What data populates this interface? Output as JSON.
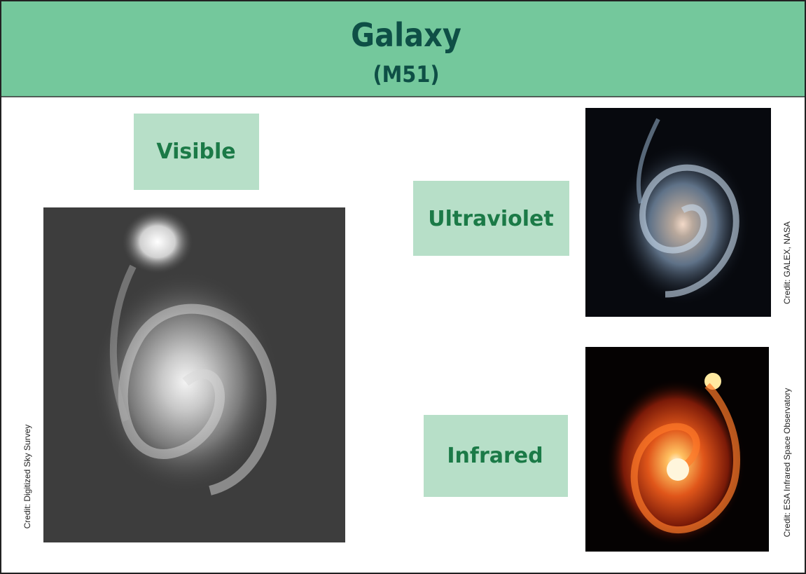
{
  "header": {
    "title": "Galaxy",
    "subtitle": "(M51)"
  },
  "panels": [
    {
      "label": "Visible",
      "credit": "Credit: Digitized Sky Survey"
    },
    {
      "label": "Ultraviolet",
      "credit": "Credit: GALEX, NASA"
    },
    {
      "label": "Infrared",
      "credit": "Credit: ESA Infrared Space Observatory"
    }
  ]
}
